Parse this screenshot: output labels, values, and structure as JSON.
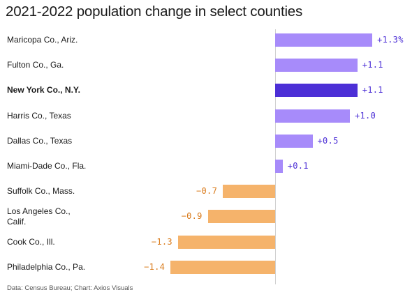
{
  "title": "2021-2022 population change in select counties",
  "source": "Data: Census Bureau; Chart: Axios Visuals",
  "colors": {
    "positive": "#a78bfa",
    "highlight": "#4c2fd6",
    "negative": "#f5b36b",
    "positive_text": "#4c2fd6",
    "negative_text": "#d97a1a"
  },
  "chart_data": {
    "type": "bar",
    "orientation": "horizontal",
    "title": "2021-2022 population change in select counties",
    "categories": [
      "Maricopa Co., Ariz.",
      "Fulton Co., Ga.",
      "New York Co., N.Y.",
      "Harris Co., Texas",
      "Dallas Co., Texas",
      "Miami-Dade Co., Fla.",
      "Suffolk Co., Mass.",
      "Los Angeles Co.,\nCalif.",
      "Cook Co., Ill.",
      "Philadelphia Co., Pa."
    ],
    "values": [
      1.3,
      1.1,
      1.1,
      1.0,
      0.5,
      0.1,
      -0.7,
      -0.9,
      -1.3,
      -1.4
    ],
    "value_labels": [
      "+1.3%",
      "+1.1",
      "+1.1",
      "+1.0",
      "+0.5",
      "+0.1",
      "−0.7",
      "−0.9",
      "−1.3",
      "−1.4"
    ],
    "highlight_category": "New York Co., N.Y.",
    "xlim": [
      -1.4,
      1.3
    ],
    "grid": false,
    "legend": "none"
  }
}
